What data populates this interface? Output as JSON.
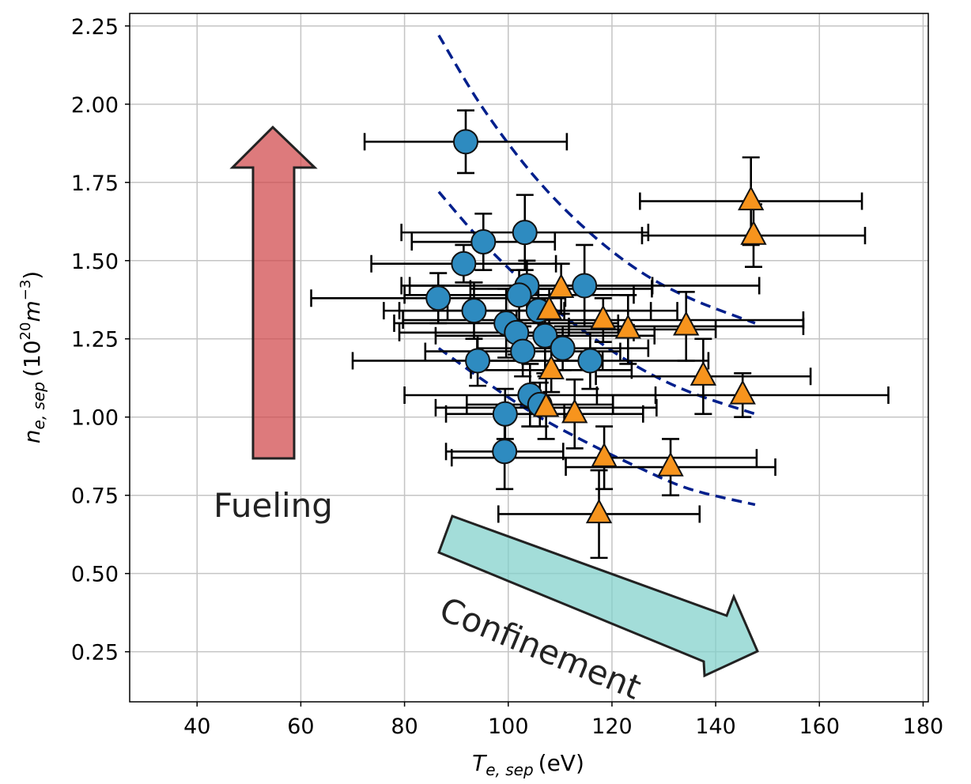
{
  "chart_data": {
    "type": "scatter",
    "title": "",
    "xlabel": "T_{e,sep} (eV)",
    "xlabel_parts": {
      "main": "T",
      "sub": "e, sep",
      "unit": "(eV)"
    },
    "ylabel": "n_{e,sep} (10^{20} m^{-3})",
    "ylabel_parts": {
      "main": "n",
      "sub": "e, sep",
      "open": "(10",
      "sup1": "20",
      "m": "m",
      "sup2": "−3",
      "close": ")"
    },
    "xlim": [
      27,
      181
    ],
    "ylim": [
      0.09,
      2.29
    ],
    "grid": true,
    "legend": null,
    "x_ticks": [
      "40",
      "60",
      "80",
      "100",
      "120",
      "140",
      "160",
      "180"
    ],
    "x_tick_values": [
      40,
      60,
      80,
      100,
      120,
      140,
      160,
      180
    ],
    "y_ticks": [
      "0.25",
      "0.50",
      "0.75",
      "1.00",
      "1.25",
      "1.50",
      "1.75",
      "2.00",
      "2.25"
    ],
    "y_tick_values": [
      0.25,
      0.5,
      0.75,
      1.0,
      1.25,
      1.5,
      1.75,
      2.0,
      2.25
    ],
    "series": [
      {
        "name": "circles",
        "marker": "circle",
        "color": "#2e8bc0",
        "points": [
          {
            "x": 91.8,
            "y": 1.88,
            "xerr": 19.5,
            "yerr": 0.1
          },
          {
            "x": 95.2,
            "y": 1.56,
            "xerr": 13.8,
            "yerr": 0.09
          },
          {
            "x": 103.2,
            "y": 1.59,
            "xerr": 23.8,
            "yerr": 0.12
          },
          {
            "x": 91.4,
            "y": 1.49,
            "xerr": 17.8,
            "yerr": 0.06
          },
          {
            "x": 103.6,
            "y": 1.42,
            "xerr": 24.2,
            "yerr": 0.08
          },
          {
            "x": 102.1,
            "y": 1.39,
            "xerr": 22.1,
            "yerr": 0.08
          },
          {
            "x": 114.7,
            "y": 1.42,
            "xerr": 33.7,
            "yerr": 0.13
          },
          {
            "x": 86.5,
            "y": 1.38,
            "xerr": 24.5,
            "yerr": 0.08
          },
          {
            "x": 93.4,
            "y": 1.34,
            "xerr": 17.4,
            "yerr": 0.09
          },
          {
            "x": 105.8,
            "y": 1.34,
            "xerr": 26.8,
            "yerr": 0.07
          },
          {
            "x": 99.6,
            "y": 1.3,
            "xerr": 21.6,
            "yerr": 0.11
          },
          {
            "x": 101.6,
            "y": 1.27,
            "xerr": 22.6,
            "yerr": 0.07
          },
          {
            "x": 107.1,
            "y": 1.26,
            "xerr": 21.1,
            "yerr": 0.12
          },
          {
            "x": 102.8,
            "y": 1.21,
            "xerr": 18.8,
            "yerr": 0.08
          },
          {
            "x": 110.5,
            "y": 1.22,
            "xerr": 16.5,
            "yerr": 0.07
          },
          {
            "x": 94.1,
            "y": 1.18,
            "xerr": 24.1,
            "yerr": 0.08
          },
          {
            "x": 115.8,
            "y": 1.18,
            "xerr": 22.8,
            "yerr": 0.09
          },
          {
            "x": 104.2,
            "y": 1.07,
            "xerr": 24.2,
            "yerr": 0.1
          },
          {
            "x": 106.1,
            "y": 1.04,
            "xerr": 14.1,
            "yerr": 0.07
          },
          {
            "x": 99.4,
            "y": 1.01,
            "xerr": 11.4,
            "yerr": 0.08
          },
          {
            "x": 99.3,
            "y": 0.89,
            "xerr": 11.3,
            "yerr": 0.12
          }
        ]
      },
      {
        "name": "triangles",
        "marker": "triangle",
        "color": "#f7941d",
        "points": [
          {
            "x": 146.8,
            "y": 1.69,
            "xerr": 21.4,
            "yerr": 0.14
          },
          {
            "x": 147.3,
            "y": 1.58,
            "xerr": 21.5,
            "yerr": 0.1
          },
          {
            "x": 110.2,
            "y": 1.41,
            "xerr": 17.5,
            "yerr": 0.08
          },
          {
            "x": 107.9,
            "y": 1.34,
            "xerr": 19.6,
            "yerr": 0.07
          },
          {
            "x": 118.3,
            "y": 1.31,
            "xerr": 38.6,
            "yerr": 0.07
          },
          {
            "x": 123.1,
            "y": 1.28,
            "xerr": 16.9,
            "yerr": 0.11
          },
          {
            "x": 134.3,
            "y": 1.29,
            "xerr": 22.6,
            "yerr": 0.11
          },
          {
            "x": 108.3,
            "y": 1.15,
            "xerr": 15.5,
            "yerr": 0.07
          },
          {
            "x": 137.6,
            "y": 1.13,
            "xerr": 20.7,
            "yerr": 0.12
          },
          {
            "x": 145.2,
            "y": 1.07,
            "xerr": 28.1,
            "yerr": 0.07
          },
          {
            "x": 107.3,
            "y": 1.03,
            "xerr": 21.3,
            "yerr": 0.1
          },
          {
            "x": 112.8,
            "y": 1.01,
            "xerr": 13.2,
            "yerr": 0.11
          },
          {
            "x": 118.5,
            "y": 0.87,
            "xerr": 29.4,
            "yerr": 0.1
          },
          {
            "x": 131.3,
            "y": 0.84,
            "xerr": 20.2,
            "yerr": 0.09
          },
          {
            "x": 117.5,
            "y": 0.69,
            "xerr": 19.4,
            "yerr": 0.14
          }
        ]
      }
    ],
    "curves": [
      {
        "name": "upper-dashed-curve",
        "color": "#001f8c",
        "style": "dashed",
        "points": [
          [
            86.6,
            2.22
          ],
          [
            95,
            1.99
          ],
          [
            105,
            1.77
          ],
          [
            115,
            1.6
          ],
          [
            125,
            1.47
          ],
          [
            135,
            1.38
          ],
          [
            147.6,
            1.3
          ]
        ]
      },
      {
        "name": "middle-dashed-curve",
        "color": "#001f8c",
        "style": "dashed",
        "points": [
          [
            86.6,
            1.72
          ],
          [
            95,
            1.56
          ],
          [
            105,
            1.4
          ],
          [
            115,
            1.27
          ],
          [
            125,
            1.16
          ],
          [
            135,
            1.08
          ],
          [
            147.6,
            1.01
          ]
        ]
      },
      {
        "name": "lower-dashed-curve",
        "color": "#001f8c",
        "style": "dashed",
        "points": [
          [
            86.6,
            1.22
          ],
          [
            95,
            1.12
          ],
          [
            105,
            1.01
          ],
          [
            115,
            0.92
          ],
          [
            125,
            0.84
          ],
          [
            135,
            0.77
          ],
          [
            147.6,
            0.72
          ]
        ]
      }
    ],
    "annotations": [
      {
        "text": "Fueling",
        "direction": "up",
        "color": "#d86c6e"
      },
      {
        "text": "Confinement",
        "direction": "down-right",
        "color": "#93d8d3"
      }
    ]
  }
}
